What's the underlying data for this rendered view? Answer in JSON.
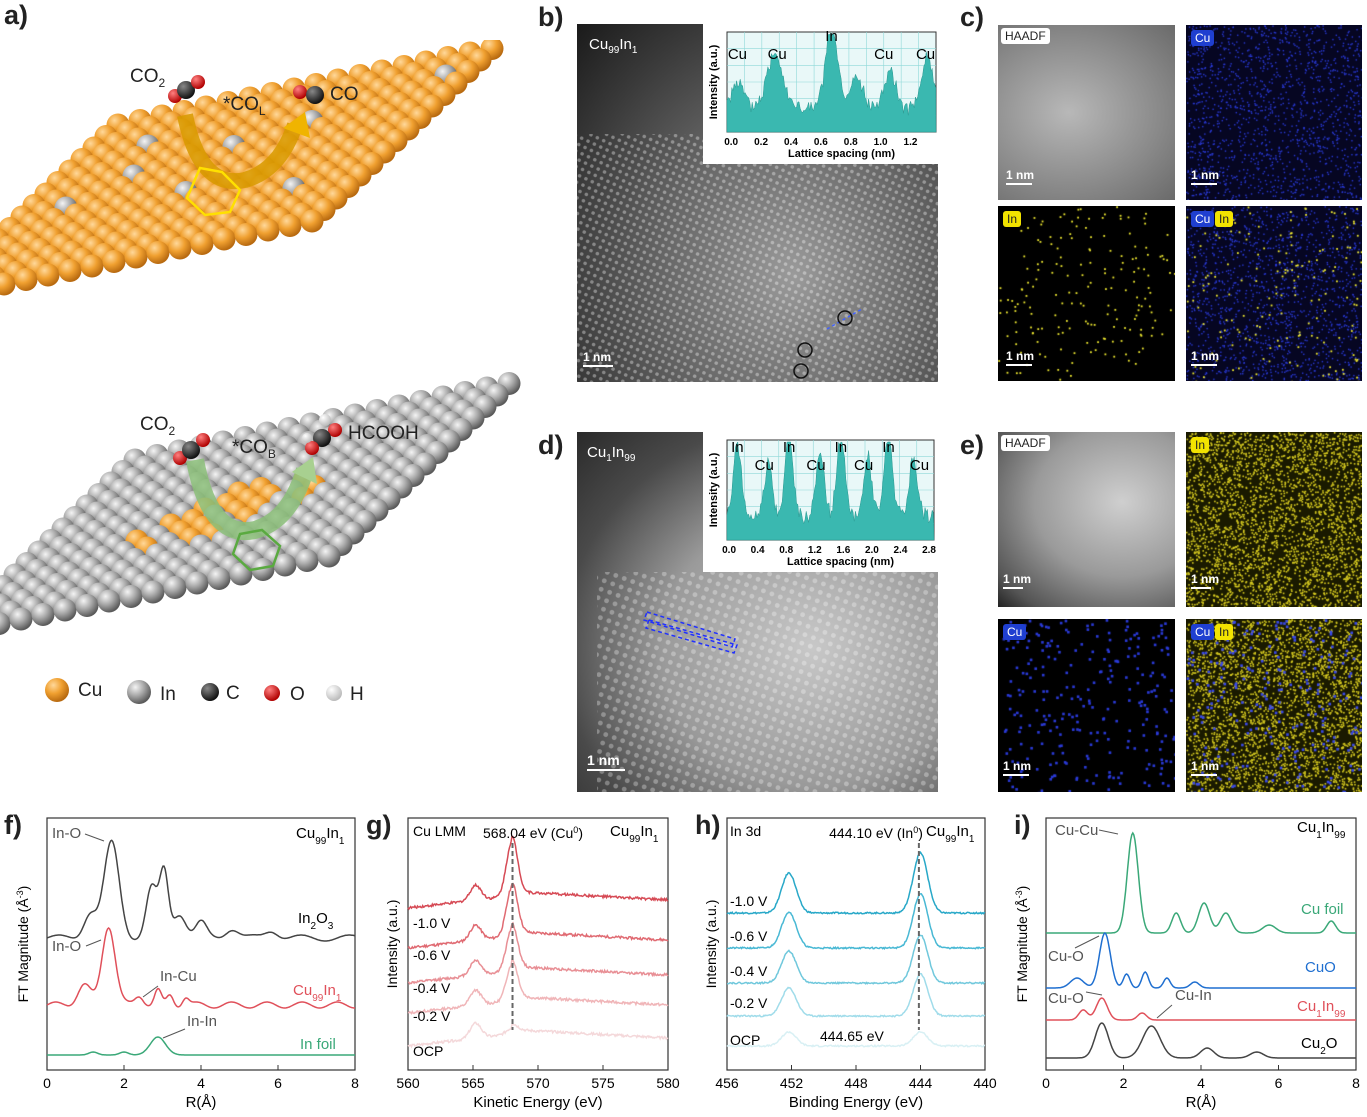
{
  "panels": {
    "a": "a)",
    "b": "b)",
    "c": "c)",
    "d": "d)",
    "e": "e)",
    "f": "f)",
    "g": "g)",
    "h": "h)",
    "i": "i)"
  },
  "a_top": {
    "co2": "CO",
    "co2_sub": "2",
    "col": "*CO",
    "col_sub": "L",
    "co": "CO"
  },
  "a_bottom": {
    "co2": "CO",
    "co2_sub": "2",
    "cob": "*CO",
    "cob_sub": "B",
    "hcooh": "HCOOH"
  },
  "legend": {
    "cu": "Cu",
    "in": "In",
    "c": "C",
    "o": "O",
    "h": "H"
  },
  "b": {
    "title_main": "Cu",
    "title_sub1": "99",
    "title_in": "In",
    "title_sub2": "1",
    "scale": "1 nm",
    "inset_ylabel": "Intensity (a.u.)",
    "inset_xlabel": "Lattice spacing (nm)",
    "inset_peaks": [
      "Cu",
      "Cu",
      "In",
      "Cu",
      "Cu"
    ],
    "inset_ticks": [
      "0.0",
      "0.2",
      "0.4",
      "0.6",
      "0.8",
      "1.0",
      "1.2"
    ]
  },
  "c": {
    "haadf": "HAADF",
    "cu": "Cu",
    "in": "In",
    "scale": "1 nm"
  },
  "d": {
    "title_main": "Cu",
    "title_sub1": "1",
    "title_in": "In",
    "title_sub2": "99",
    "scale": "1 nm",
    "inset_ylabel": "Intensity (a.u.)",
    "inset_xlabel": "Lattice spacing (nm)",
    "inset_peaks_top": [
      "In",
      "In",
      "In",
      "In"
    ],
    "inset_peaks_bottom": [
      "Cu",
      "Cu",
      "Cu",
      "Cu"
    ],
    "inset_ticks": [
      "0.0",
      "0.4",
      "0.8",
      "1.2",
      "1.6",
      "2.0",
      "2.4",
      "2.8"
    ]
  },
  "e": {
    "haadf": "HAADF",
    "cu": "Cu",
    "in": "In",
    "scale": "1 nm"
  },
  "colors": {
    "cu": "#f0a030",
    "in": "#a9a9a9",
    "c": "#333333",
    "o": "#e0201a",
    "h": "#e8e8e8",
    "f_black": "#444444",
    "f_red": "#e0505a",
    "f_green": "#3aa878",
    "i_blue": "#1f6fd0"
  },
  "chart_data": [
    {
      "id": "f",
      "type": "line",
      "title": "Cu99In1",
      "xlabel": "R(Å)",
      "ylabel": "FT Magnitude (Å-3)",
      "xlim": [
        0,
        8
      ],
      "xticks": [
        "0",
        "2",
        "4",
        "6",
        "8"
      ],
      "series": [
        {
          "name": "In2O3"
        },
        {
          "name": "Cu99In1"
        },
        {
          "name": "In foil"
        }
      ],
      "annotations": [
        "In-O",
        "In-O",
        "In-Cu",
        "In-In"
      ]
    },
    {
      "id": "g",
      "type": "line",
      "title": "Cu99In1",
      "subtitle": "Cu LMM",
      "xlabel": "Kinetic Energy (eV)",
      "ylabel": "Intensity (a.u.)",
      "xlim": [
        560,
        580
      ],
      "xticks": [
        "560",
        "565",
        "570",
        "575",
        "580"
      ],
      "peak_label": "568.04 eV (Cu0)",
      "peak_x": 568.04,
      "series": [
        {
          "name": "-1.0 V"
        },
        {
          "name": "-0.6 V"
        },
        {
          "name": "-0.4 V"
        },
        {
          "name": "-0.2 V"
        },
        {
          "name": "OCP"
        }
      ]
    },
    {
      "id": "h",
      "type": "line",
      "title": "Cu99In1",
      "subtitle": "In 3d",
      "xlabel": "Binding Energy (eV)",
      "ylabel": "Intensity (a.u.)",
      "xlim": [
        456,
        440
      ],
      "xticks": [
        "456",
        "452",
        "448",
        "444",
        "440"
      ],
      "peak_label": "444.10 eV (In0)",
      "peak_x": 444.1,
      "ocp_label": "444.65 eV",
      "series": [
        {
          "name": "-1.0 V"
        },
        {
          "name": "-0.6 V"
        },
        {
          "name": "-0.4 V"
        },
        {
          "name": "-0.2 V"
        },
        {
          "name": "OCP"
        }
      ]
    },
    {
      "id": "i",
      "type": "line",
      "title": "Cu1In99",
      "xlabel": "R(Å)",
      "ylabel": "FT Magnitude (Å-3)",
      "xlim": [
        0,
        8
      ],
      "xticks": [
        "0",
        "2",
        "4",
        "6",
        "8"
      ],
      "series": [
        {
          "name": "Cu foil"
        },
        {
          "name": "CuO"
        },
        {
          "name": "Cu1In99"
        },
        {
          "name": "Cu2O"
        }
      ],
      "annotations": [
        "Cu-Cu",
        "Cu-O",
        "Cu-O",
        "Cu-In"
      ]
    }
  ]
}
